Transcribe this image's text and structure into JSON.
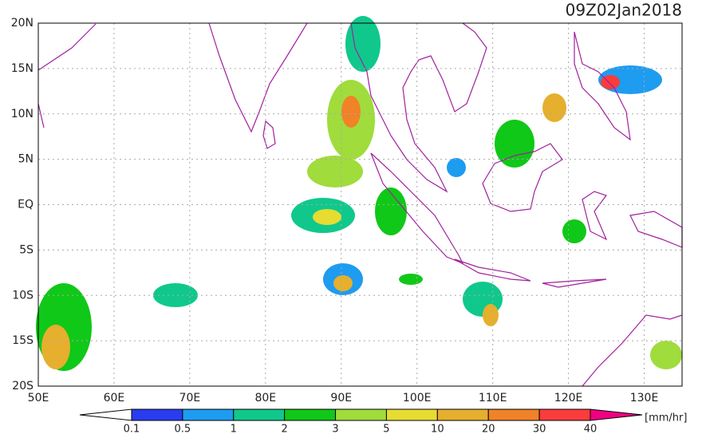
{
  "map": {
    "title": "09Z02Jan2018",
    "lon_range": [
      50,
      135
    ],
    "lat_range": [
      -20,
      20
    ],
    "lat_ticks": [
      {
        "value": 20,
        "label": "20N"
      },
      {
        "value": 15,
        "label": "15N"
      },
      {
        "value": 10,
        "label": "10N"
      },
      {
        "value": 5,
        "label": "5N"
      },
      {
        "value": 0,
        "label": "EQ"
      },
      {
        "value": -5,
        "label": "5S"
      },
      {
        "value": -10,
        "label": "10S"
      },
      {
        "value": -15,
        "label": "15S"
      },
      {
        "value": -20,
        "label": "20S"
      }
    ],
    "lon_ticks": [
      {
        "value": 50,
        "label": "50E"
      },
      {
        "value": 60,
        "label": "60E"
      },
      {
        "value": 70,
        "label": "70E"
      },
      {
        "value": 80,
        "label": "80E"
      },
      {
        "value": 90,
        "label": "90E"
      },
      {
        "value": 100,
        "label": "100E"
      },
      {
        "value": 110,
        "label": "110E"
      },
      {
        "value": 120,
        "label": "120E"
      },
      {
        "value": 130,
        "label": "130E"
      }
    ],
    "colorbar": {
      "levels": [
        0.1,
        0.5,
        1,
        2,
        3,
        5,
        10,
        20,
        30,
        40
      ],
      "colors": [
        "#ffffff",
        "#2a3cf0",
        "#1e9cf0",
        "#10c88c",
        "#10c818",
        "#a0dc3c",
        "#e6dc32",
        "#e6af2d",
        "#f08228",
        "#fa3c3c",
        "#f00082"
      ],
      "units": "[mm/hr]"
    }
  }
}
